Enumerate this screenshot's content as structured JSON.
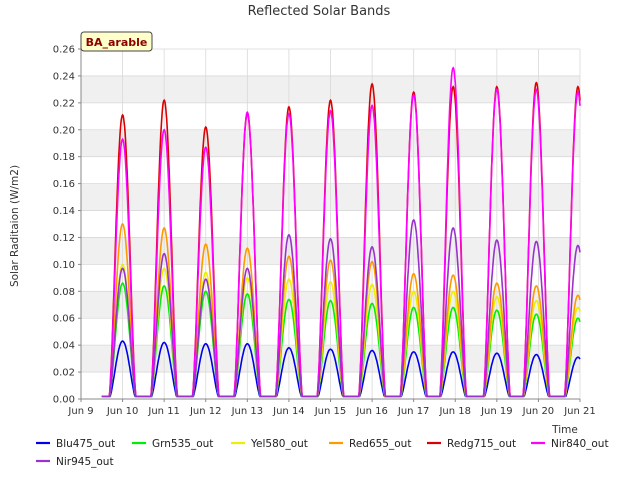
{
  "chart_data": {
    "type": "line",
    "title": "Reflected Solar Bands",
    "xlabel": "Time",
    "ylabel": "Solar Raditaion (W/m2)",
    "badge": "BA_arable",
    "xlim": [
      9,
      21
    ],
    "ylim": [
      0,
      0.26
    ],
    "x_ticks": [
      "Jun 9",
      "Jun 10",
      "Jun 11",
      "Jun 12",
      "Jun 13",
      "Jun 14",
      "Jun 15",
      "Jun 16",
      "Jun 17",
      "Jun 18",
      "Jun 19",
      "Jun 20",
      "Jun 21"
    ],
    "y_ticks": [
      "0.00",
      "0.02",
      "0.04",
      "0.06",
      "0.08",
      "0.10",
      "0.12",
      "0.14",
      "0.16",
      "0.18",
      "0.20",
      "0.22",
      "0.24",
      "0.26"
    ],
    "grid": true,
    "legend_position": "bottom",
    "day_centers": [
      10.0,
      11.0,
      12.0,
      13.0,
      14.0,
      15.0,
      16.0,
      17.0,
      17.95,
      19.0,
      19.95,
      20.95
    ],
    "series": [
      {
        "name": "Blu475_out",
        "color": "#0000ee",
        "peaks": [
          0.043,
          0.042,
          0.041,
          0.041,
          0.038,
          0.037,
          0.036,
          0.035,
          0.035,
          0.034,
          0.033,
          0.031
        ]
      },
      {
        "name": "Grn535_out",
        "color": "#00ee00",
        "peaks": [
          0.086,
          0.084,
          0.08,
          0.078,
          0.074,
          0.073,
          0.071,
          0.068,
          0.068,
          0.066,
          0.063,
          0.06
        ]
      },
      {
        "name": "Yel580_out",
        "color": "#eeee00",
        "peaks": [
          0.1,
          0.097,
          0.094,
          0.09,
          0.089,
          0.087,
          0.085,
          0.08,
          0.08,
          0.076,
          0.073,
          0.068
        ]
      },
      {
        "name": "Red655_out",
        "color": "#ff9900",
        "peaks": [
          0.13,
          0.127,
          0.115,
          0.112,
          0.106,
          0.103,
          0.102,
          0.093,
          0.092,
          0.086,
          0.084,
          0.077
        ]
      },
      {
        "name": "Redg715_out",
        "color": "#dd0000",
        "peaks": [
          0.211,
          0.222,
          0.202,
          0.212,
          0.217,
          0.222,
          0.234,
          0.228,
          0.232,
          0.232,
          0.235,
          0.232
        ]
      },
      {
        "name": "Nir840_out",
        "color": "#ff00ff",
        "peaks": [
          0.193,
          0.2,
          0.187,
          0.213,
          0.212,
          0.214,
          0.218,
          0.226,
          0.246,
          0.23,
          0.23,
          0.228
        ]
      },
      {
        "name": "Nir945_out",
        "color": "#9933cc",
        "peaks": [
          0.097,
          0.108,
          0.089,
          0.097,
          0.122,
          0.119,
          0.113,
          0.133,
          0.127,
          0.118,
          0.117,
          0.114
        ]
      }
    ]
  }
}
